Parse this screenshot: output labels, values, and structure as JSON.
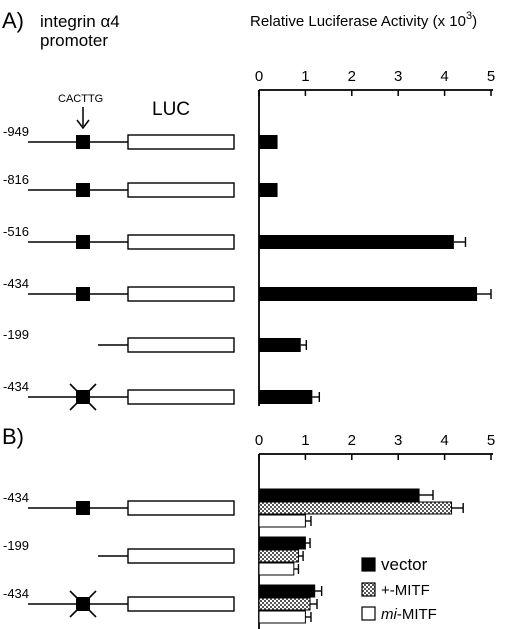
{
  "panels": {
    "a_label": "A)",
    "b_label": "B)",
    "promoter_title_line1": "integrin α4",
    "promoter_title_line2": "promoter",
    "ebox_label": "CACTTG",
    "reporter_label": "LUC"
  },
  "chart_data": [
    {
      "type": "bar",
      "orientation": "horizontal",
      "panel": "A",
      "title": "Relative Luciferase Activity (x 10",
      "title_sup": "3",
      "title_close": ")",
      "categories": [
        "-949",
        "-816",
        "-516",
        "-434",
        "-199",
        "-434"
      ],
      "ebox": [
        "intact",
        "intact",
        "intact",
        "intact",
        "absent",
        "mutated"
      ],
      "values": [
        0.4,
        0.4,
        4.2,
        4.7,
        0.9,
        1.15
      ],
      "errors": [
        0,
        0,
        0.25,
        0.3,
        0.12,
        0.15
      ],
      "xlim": [
        0,
        5
      ],
      "xticks": [
        0,
        1,
        2,
        3,
        4,
        5
      ],
      "tick_labels": [
        "0",
        "1",
        "2",
        "3",
        "4",
        "5"
      ],
      "axis_position": "top",
      "grid": false,
      "bar_color": "#000000"
    },
    {
      "type": "bar",
      "orientation": "horizontal",
      "panel": "B",
      "categories": [
        "-434",
        "-199",
        "-434"
      ],
      "ebox": [
        "intact",
        "absent",
        "mutated"
      ],
      "series": [
        {
          "name": "vector",
          "name_prefix": "",
          "name_italic": "",
          "values": [
            3.45,
            1.0,
            1.2
          ],
          "errors": [
            0.3,
            0.1,
            0.15
          ],
          "fill": "solid"
        },
        {
          "name": "+-MITF",
          "name_prefix": "+-",
          "name_italic": "",
          "values": [
            4.15,
            0.85,
            1.1
          ],
          "errors": [
            0.25,
            0.1,
            0.15
          ],
          "fill": "stipple"
        },
        {
          "name": "mi-MITF",
          "name_prefix": "",
          "name_italic": "mi",
          "values": [
            1.0,
            0.75,
            1.0
          ],
          "errors": [
            0.12,
            0.1,
            0.12
          ],
          "fill": "open"
        }
      ],
      "xlim": [
        0,
        5
      ],
      "xticks": [
        0,
        1,
        2,
        3,
        4,
        5
      ],
      "tick_labels": [
        "0",
        "1",
        "2",
        "3",
        "4",
        "5"
      ],
      "axis_position": "top",
      "grid": false,
      "legend_position": "bottom-right"
    }
  ]
}
